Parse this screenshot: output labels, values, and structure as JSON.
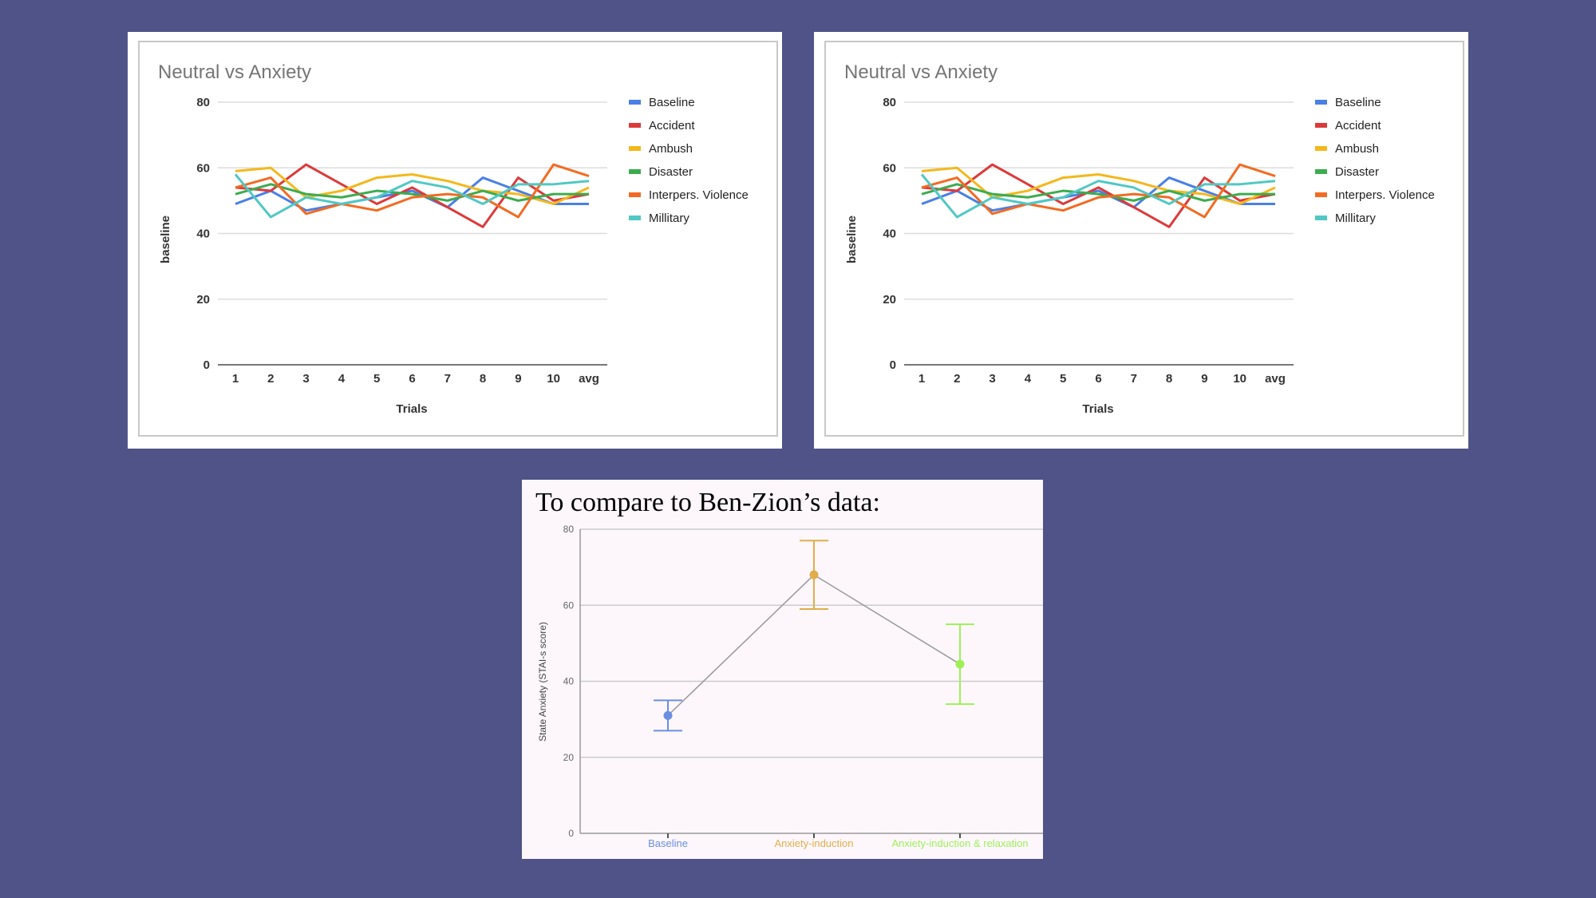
{
  "chart_data": [
    {
      "type": "line",
      "title": "Neutral vs Anxiety",
      "xlabel": "Trials",
      "ylabel": "baseline",
      "categories": [
        "1",
        "2",
        "3",
        "4",
        "5",
        "6",
        "7",
        "8",
        "9",
        "10",
        "avg"
      ],
      "ylim": [
        0,
        80
      ],
      "yticks": [
        0,
        20,
        40,
        60,
        80
      ],
      "grid": true,
      "legend": "right",
      "series": [
        {
          "name": "Baseline",
          "color": "#4a7fe6",
          "values": [
            49,
            53,
            47,
            49,
            51,
            53,
            48,
            57,
            53,
            49,
            49
          ]
        },
        {
          "name": "Accident",
          "color": "#dc3a3a",
          "values": [
            54,
            53,
            61,
            55,
            49,
            54,
            48,
            42,
            57,
            50,
            52
          ]
        },
        {
          "name": "Ambush",
          "color": "#f4b81c",
          "values": [
            59,
            60,
            51,
            53,
            57,
            58,
            56,
            53,
            52,
            49,
            54
          ]
        },
        {
          "name": "Disaster",
          "color": "#3cac4e",
          "values": [
            52,
            55,
            52,
            51,
            53,
            52,
            50,
            53,
            50,
            52,
            52
          ]
        },
        {
          "name": "Interpers. Violence",
          "color": "#f26b22",
          "values": [
            54,
            57,
            46,
            49,
            47,
            51,
            52,
            51,
            45,
            61,
            57.5
          ]
        },
        {
          "name": "Millitary",
          "color": "#50c8c4",
          "values": [
            58,
            45,
            51,
            49,
            51,
            56,
            54,
            49,
            55,
            55,
            56
          ]
        }
      ]
    },
    {
      "type": "line",
      "title": "Neutral vs Anxiety",
      "xlabel": "Trials",
      "ylabel": "baseline",
      "categories": [
        "1",
        "2",
        "3",
        "4",
        "5",
        "6",
        "7",
        "8",
        "9",
        "10",
        "avg"
      ],
      "ylim": [
        0,
        80
      ],
      "yticks": [
        0,
        20,
        40,
        60,
        80
      ],
      "grid": true,
      "legend": "right",
      "series": [
        {
          "name": "Baseline",
          "color": "#4a7fe6",
          "values": [
            49,
            53,
            47,
            49,
            51,
            53,
            48,
            57,
            53,
            49,
            49
          ]
        },
        {
          "name": "Accident",
          "color": "#dc3a3a",
          "values": [
            54,
            53,
            61,
            55,
            49,
            54,
            48,
            42,
            57,
            50,
            52
          ]
        },
        {
          "name": "Ambush",
          "color": "#f4b81c",
          "values": [
            59,
            60,
            51,
            53,
            57,
            58,
            56,
            53,
            52,
            49,
            54
          ]
        },
        {
          "name": "Disaster",
          "color": "#3cac4e",
          "values": [
            52,
            55,
            52,
            51,
            53,
            52,
            50,
            53,
            50,
            52,
            52
          ]
        },
        {
          "name": "Interpers. Violence",
          "color": "#f26b22",
          "values": [
            54,
            57,
            46,
            49,
            47,
            51,
            52,
            51,
            45,
            61,
            57.5
          ]
        },
        {
          "name": "Millitary",
          "color": "#50c8c4",
          "values": [
            58,
            45,
            51,
            49,
            51,
            56,
            54,
            49,
            55,
            55,
            56
          ]
        }
      ]
    },
    {
      "type": "line",
      "title": "To compare to Ben-Zion’s data:",
      "ylabel": "State Anxiety (STAI-s score)",
      "ylim": [
        0,
        80
      ],
      "yticks": [
        0,
        20,
        40,
        60,
        80
      ],
      "grid": true,
      "line_color": "#999999",
      "points": [
        {
          "label": "Baseline",
          "color": "#6b8fe0",
          "value": 31,
          "err_low": 27,
          "err_high": 35
        },
        {
          "label": "Anxiety-induction",
          "color": "#e0ad4a",
          "value": 68,
          "err_low": 59,
          "err_high": 77
        },
        {
          "label": "Anxiety-induction & relaxation",
          "color": "#9ef056",
          "value": 44.5,
          "err_low": 34,
          "err_high": 55
        }
      ]
    }
  ]
}
